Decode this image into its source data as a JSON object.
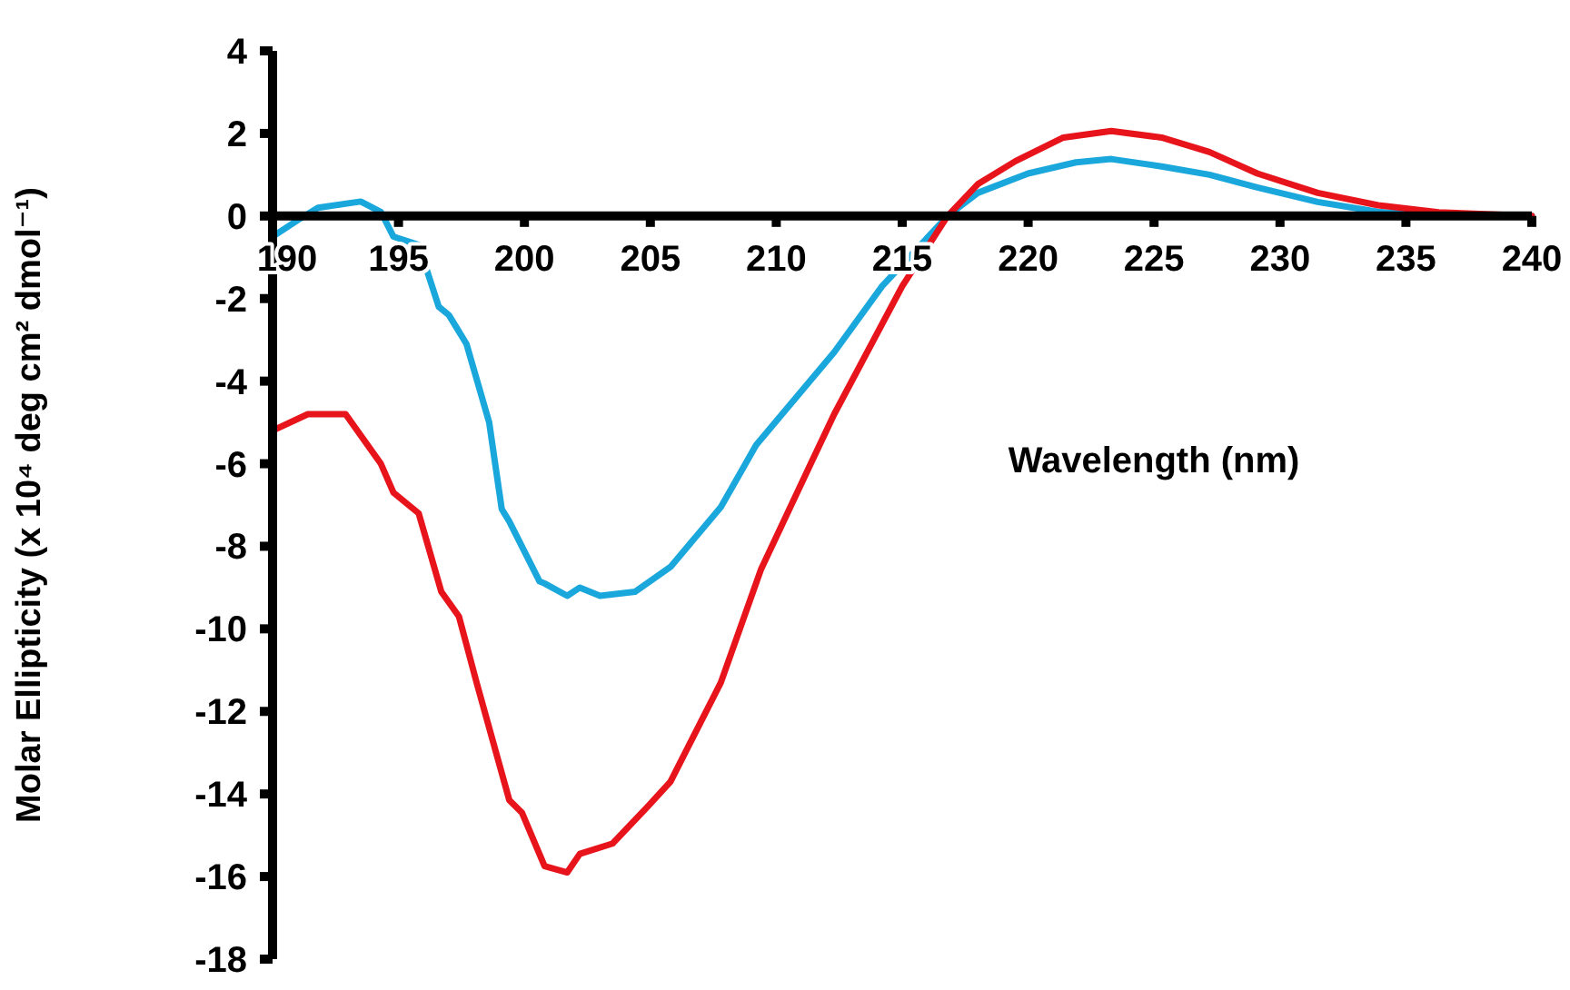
{
  "chart_data": {
    "type": "line",
    "xlabel": "Wavelength (nm)",
    "ylabel": "Molar Ellipticity (x 10⁴ deg cm² dmol⁻¹)",
    "xlim": [
      190,
      240
    ],
    "xticks": [
      190,
      195,
      200,
      205,
      210,
      215,
      220,
      225,
      230,
      235,
      240
    ],
    "ylim": [
      -18,
      4
    ],
    "yticks": [
      4,
      2,
      0,
      -2,
      -4,
      -6,
      -8,
      -10,
      -12,
      -14,
      -16,
      -18
    ],
    "grid": false,
    "marker": "none",
    "line_style": "solid",
    "series": [
      {
        "color": "#1aa7dc",
        "x": [
          190,
          191,
          191.8,
          193.5,
          194.3,
          194.8,
          195.8,
          196.6,
          197,
          197.7,
          198.6,
          199.1,
          199.4,
          200.6,
          200.8,
          201.7,
          202.2,
          203,
          204.4,
          205.8,
          207.8,
          209.2,
          212.3,
          214.2,
          216.8,
          218,
          220,
          221.9,
          223.3,
          225.3,
          227.2,
          229.1,
          231.5,
          233.9,
          236.3,
          240
        ],
        "values": [
          -0.5,
          -0.1,
          0.2,
          0.35,
          0.1,
          -0.5,
          -0.7,
          -2.2,
          -2.4,
          -3.1,
          -5,
          -7.1,
          -7.4,
          -8.85,
          -8.9,
          -9.2,
          -9.0,
          -9.2,
          -9.1,
          -8.5,
          -7.05,
          -5.55,
          -3.3,
          -1.7,
          0,
          0.56,
          1.03,
          1.3,
          1.38,
          1.2,
          1.0,
          0.69,
          0.34,
          0.1,
          0,
          0
        ]
      },
      {
        "color": "#e8141b",
        "x": [
          190,
          191.4,
          192.9,
          194.3,
          194.8,
          195.8,
          196.7,
          197.4,
          198.1,
          199.4,
          199.9,
          200.8,
          201.7,
          202.2,
          203.5,
          204.9,
          205.8,
          207.8,
          209.4,
          211.6,
          212.3,
          215,
          216.8,
          218,
          219.5,
          221.4,
          223.3,
          225.3,
          227.2,
          229.1,
          231.5,
          233.9,
          236.3,
          240
        ],
        "values": [
          -5.2,
          -4.8,
          -4.8,
          -6,
          -6.7,
          -7.2,
          -9.1,
          -9.7,
          -11.3,
          -14.15,
          -14.45,
          -15.75,
          -15.9,
          -15.45,
          -15.2,
          -14.3,
          -13.7,
          -11.3,
          -8.55,
          -5.7,
          -4.8,
          -1.7,
          0,
          0.77,
          1.33,
          1.9,
          2.06,
          1.9,
          1.55,
          1.03,
          0.56,
          0.26,
          0.09,
          0
        ]
      }
    ]
  }
}
